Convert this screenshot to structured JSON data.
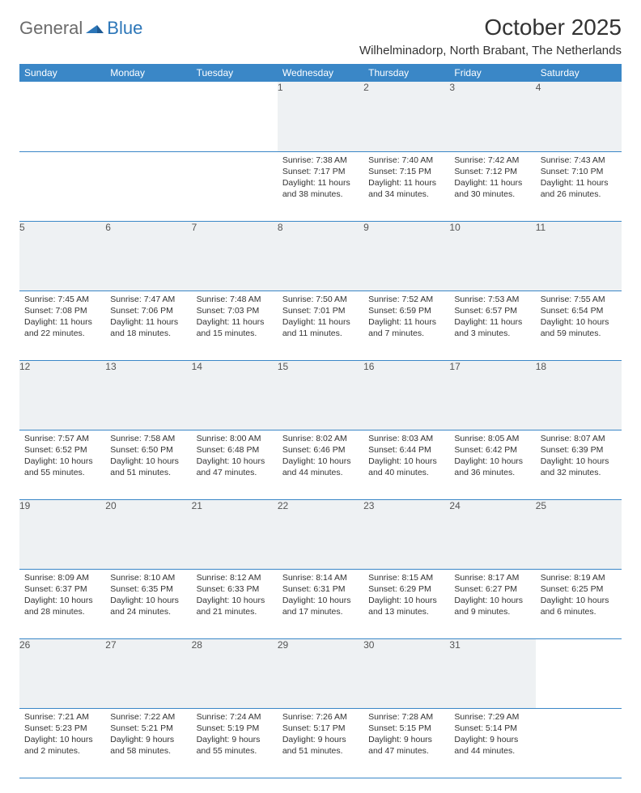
{
  "brand": {
    "part1": "General",
    "part2": "Blue"
  },
  "title": "October 2025",
  "location": "Wilhelminadorp, North Brabant, The Netherlands",
  "colors": {
    "header_bg": "#3a87c7",
    "header_text": "#ffffff",
    "daynum_bg": "#eef1f3",
    "rule": "#3a87c7",
    "logo_gray": "#6b6b6b",
    "logo_blue": "#2c76b8",
    "body_text": "#333333"
  },
  "typography": {
    "month_title_pt": 21,
    "location_pt": 11,
    "dayhead_pt": 9,
    "body_pt": 8
  },
  "day_headers": [
    "Sunday",
    "Monday",
    "Tuesday",
    "Wednesday",
    "Thursday",
    "Friday",
    "Saturday"
  ],
  "weeks": [
    {
      "nums": [
        "",
        "",
        "",
        "1",
        "2",
        "3",
        "4"
      ],
      "cells": [
        null,
        null,
        null,
        {
          "sr": "Sunrise: 7:38 AM",
          "ss": "Sunset: 7:17 PM",
          "dl": "Daylight: 11 hours and 38 minutes."
        },
        {
          "sr": "Sunrise: 7:40 AM",
          "ss": "Sunset: 7:15 PM",
          "dl": "Daylight: 11 hours and 34 minutes."
        },
        {
          "sr": "Sunrise: 7:42 AM",
          "ss": "Sunset: 7:12 PM",
          "dl": "Daylight: 11 hours and 30 minutes."
        },
        {
          "sr": "Sunrise: 7:43 AM",
          "ss": "Sunset: 7:10 PM",
          "dl": "Daylight: 11 hours and 26 minutes."
        }
      ]
    },
    {
      "nums": [
        "5",
        "6",
        "7",
        "8",
        "9",
        "10",
        "11"
      ],
      "cells": [
        {
          "sr": "Sunrise: 7:45 AM",
          "ss": "Sunset: 7:08 PM",
          "dl": "Daylight: 11 hours and 22 minutes."
        },
        {
          "sr": "Sunrise: 7:47 AM",
          "ss": "Sunset: 7:06 PM",
          "dl": "Daylight: 11 hours and 18 minutes."
        },
        {
          "sr": "Sunrise: 7:48 AM",
          "ss": "Sunset: 7:03 PM",
          "dl": "Daylight: 11 hours and 15 minutes."
        },
        {
          "sr": "Sunrise: 7:50 AM",
          "ss": "Sunset: 7:01 PM",
          "dl": "Daylight: 11 hours and 11 minutes."
        },
        {
          "sr": "Sunrise: 7:52 AM",
          "ss": "Sunset: 6:59 PM",
          "dl": "Daylight: 11 hours and 7 minutes."
        },
        {
          "sr": "Sunrise: 7:53 AM",
          "ss": "Sunset: 6:57 PM",
          "dl": "Daylight: 11 hours and 3 minutes."
        },
        {
          "sr": "Sunrise: 7:55 AM",
          "ss": "Sunset: 6:54 PM",
          "dl": "Daylight: 10 hours and 59 minutes."
        }
      ]
    },
    {
      "nums": [
        "12",
        "13",
        "14",
        "15",
        "16",
        "17",
        "18"
      ],
      "cells": [
        {
          "sr": "Sunrise: 7:57 AM",
          "ss": "Sunset: 6:52 PM",
          "dl": "Daylight: 10 hours and 55 minutes."
        },
        {
          "sr": "Sunrise: 7:58 AM",
          "ss": "Sunset: 6:50 PM",
          "dl": "Daylight: 10 hours and 51 minutes."
        },
        {
          "sr": "Sunrise: 8:00 AM",
          "ss": "Sunset: 6:48 PM",
          "dl": "Daylight: 10 hours and 47 minutes."
        },
        {
          "sr": "Sunrise: 8:02 AM",
          "ss": "Sunset: 6:46 PM",
          "dl": "Daylight: 10 hours and 44 minutes."
        },
        {
          "sr": "Sunrise: 8:03 AM",
          "ss": "Sunset: 6:44 PM",
          "dl": "Daylight: 10 hours and 40 minutes."
        },
        {
          "sr": "Sunrise: 8:05 AM",
          "ss": "Sunset: 6:42 PM",
          "dl": "Daylight: 10 hours and 36 minutes."
        },
        {
          "sr": "Sunrise: 8:07 AM",
          "ss": "Sunset: 6:39 PM",
          "dl": "Daylight: 10 hours and 32 minutes."
        }
      ]
    },
    {
      "nums": [
        "19",
        "20",
        "21",
        "22",
        "23",
        "24",
        "25"
      ],
      "cells": [
        {
          "sr": "Sunrise: 8:09 AM",
          "ss": "Sunset: 6:37 PM",
          "dl": "Daylight: 10 hours and 28 minutes."
        },
        {
          "sr": "Sunrise: 8:10 AM",
          "ss": "Sunset: 6:35 PM",
          "dl": "Daylight: 10 hours and 24 minutes."
        },
        {
          "sr": "Sunrise: 8:12 AM",
          "ss": "Sunset: 6:33 PM",
          "dl": "Daylight: 10 hours and 21 minutes."
        },
        {
          "sr": "Sunrise: 8:14 AM",
          "ss": "Sunset: 6:31 PM",
          "dl": "Daylight: 10 hours and 17 minutes."
        },
        {
          "sr": "Sunrise: 8:15 AM",
          "ss": "Sunset: 6:29 PM",
          "dl": "Daylight: 10 hours and 13 minutes."
        },
        {
          "sr": "Sunrise: 8:17 AM",
          "ss": "Sunset: 6:27 PM",
          "dl": "Daylight: 10 hours and 9 minutes."
        },
        {
          "sr": "Sunrise: 8:19 AM",
          "ss": "Sunset: 6:25 PM",
          "dl": "Daylight: 10 hours and 6 minutes."
        }
      ]
    },
    {
      "nums": [
        "26",
        "27",
        "28",
        "29",
        "30",
        "31",
        ""
      ],
      "cells": [
        {
          "sr": "Sunrise: 7:21 AM",
          "ss": "Sunset: 5:23 PM",
          "dl": "Daylight: 10 hours and 2 minutes."
        },
        {
          "sr": "Sunrise: 7:22 AM",
          "ss": "Sunset: 5:21 PM",
          "dl": "Daylight: 9 hours and 58 minutes."
        },
        {
          "sr": "Sunrise: 7:24 AM",
          "ss": "Sunset: 5:19 PM",
          "dl": "Daylight: 9 hours and 55 minutes."
        },
        {
          "sr": "Sunrise: 7:26 AM",
          "ss": "Sunset: 5:17 PM",
          "dl": "Daylight: 9 hours and 51 minutes."
        },
        {
          "sr": "Sunrise: 7:28 AM",
          "ss": "Sunset: 5:15 PM",
          "dl": "Daylight: 9 hours and 47 minutes."
        },
        {
          "sr": "Sunrise: 7:29 AM",
          "ss": "Sunset: 5:14 PM",
          "dl": "Daylight: 9 hours and 44 minutes."
        },
        null
      ]
    }
  ]
}
